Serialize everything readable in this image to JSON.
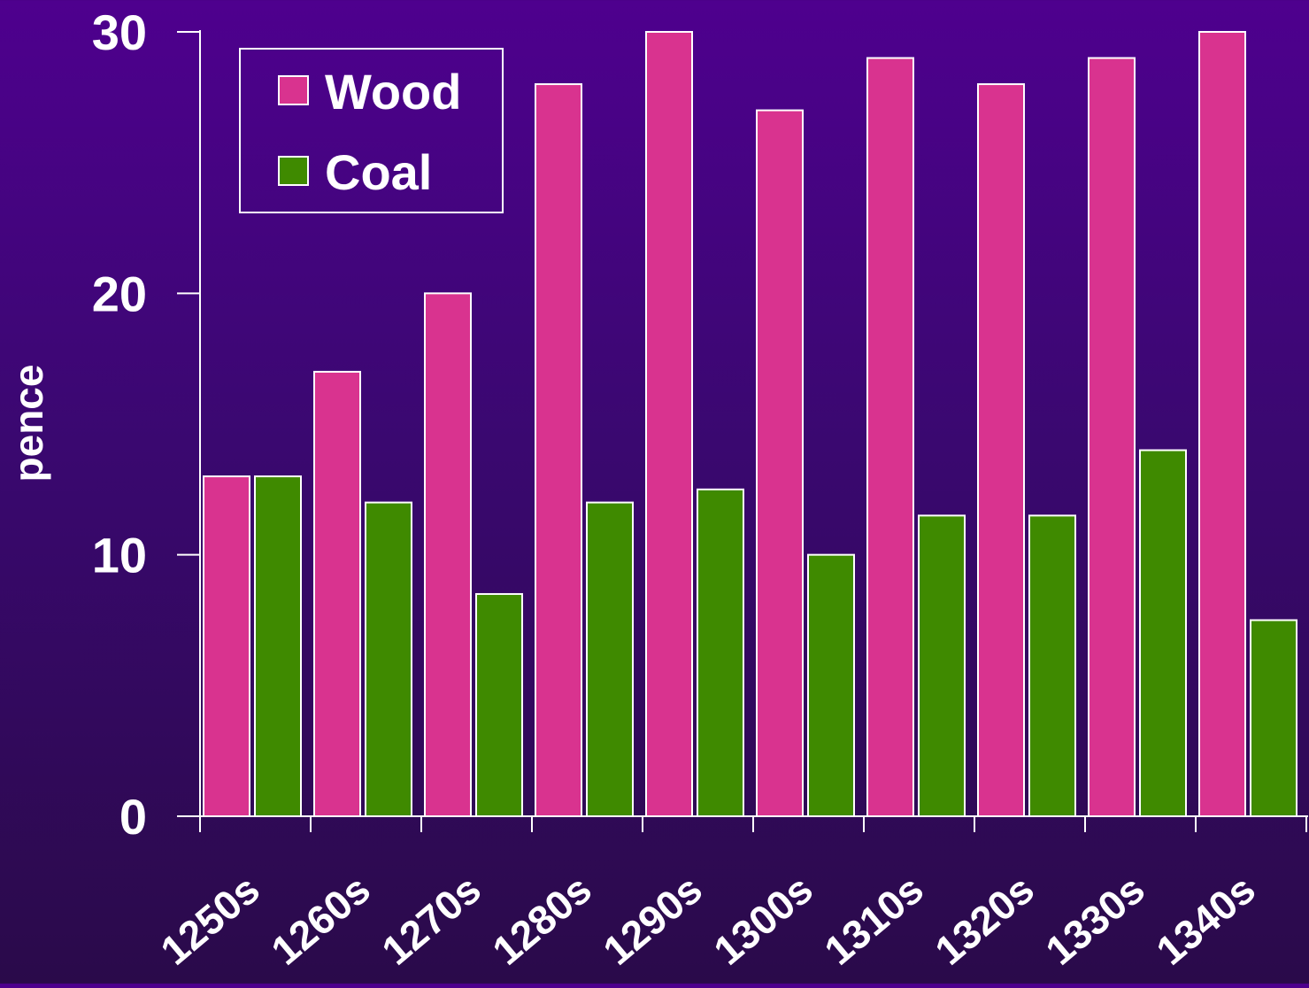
{
  "chart_data": {
    "type": "bar",
    "categories": [
      "1250s",
      "1260s",
      "1270s",
      "1280s",
      "1290s",
      "1300s",
      "1310s",
      "1320s",
      "1330s",
      "1340s"
    ],
    "series": [
      {
        "name": "Wood",
        "color": "#d9338f",
        "values": [
          13,
          17,
          20,
          28,
          30,
          27,
          29,
          28,
          29,
          30
        ]
      },
      {
        "name": "Coal",
        "color": "#3f8a00",
        "values": [
          13,
          12,
          8.5,
          12,
          12.5,
          10,
          11.5,
          11.5,
          14,
          7.5
        ]
      }
    ],
    "title": "",
    "xlabel": "",
    "ylabel": "pence",
    "ylim": [
      0,
      30
    ],
    "yticks": [
      0,
      10,
      20,
      30
    ],
    "legend": "top-left",
    "grid": false
  }
}
